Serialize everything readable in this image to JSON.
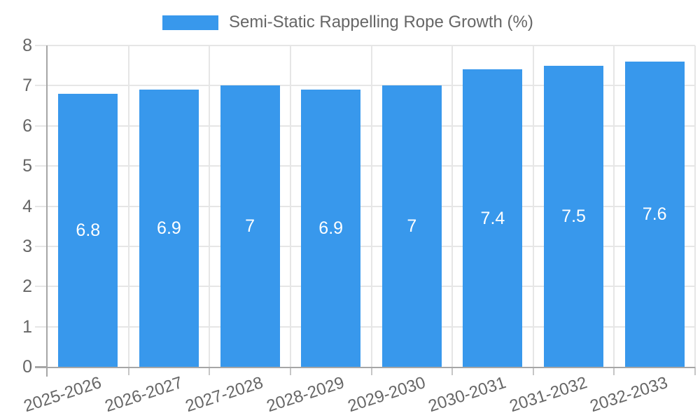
{
  "chart_data": {
    "type": "bar",
    "title": "Semi-Static Rappelling Rope Growth (%)",
    "categories": [
      "2025-2026",
      "2026-2027",
      "2027-2028",
      "2028-2029",
      "2029-2030",
      "2030-2031",
      "2031-2032",
      "2032-2033"
    ],
    "values": [
      6.8,
      6.9,
      7,
      6.9,
      7,
      7.4,
      7.5,
      7.6
    ],
    "value_labels": [
      "6.8",
      "6.9",
      "7",
      "6.9",
      "7",
      "7.4",
      "7.5",
      "7.6"
    ],
    "xlabel": "",
    "ylabel": "",
    "ylim": [
      0,
      8
    ],
    "yticks": [
      "0",
      "1",
      "2",
      "3",
      "4",
      "5",
      "6",
      "7",
      "8"
    ],
    "grid": true,
    "legend_position": "top-center",
    "colors": {
      "bar": "#3898ec",
      "grid": "#e6e6e6",
      "tick": "#c6c6c6",
      "axis": "#a6a6a6",
      "text": "#666666",
      "value_text": "#ffffff"
    }
  }
}
